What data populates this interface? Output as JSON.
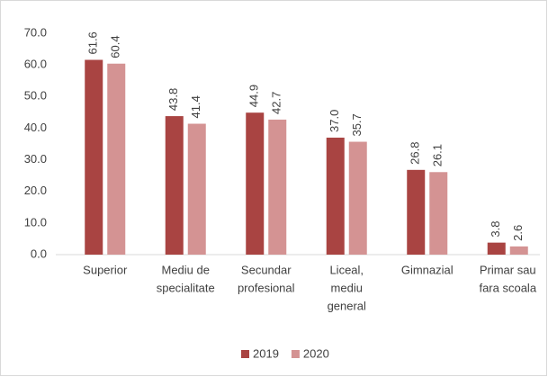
{
  "chart_data": {
    "type": "bar",
    "categories": [
      [
        "Superior"
      ],
      [
        "Mediu de",
        "specialitate"
      ],
      [
        "Secundar",
        "profesional"
      ],
      [
        "Liceal,",
        "mediu",
        "general"
      ],
      [
        "Gimnazial"
      ],
      [
        "Primar sau",
        "fara scoala"
      ]
    ],
    "series": [
      {
        "name": "2019",
        "color": "#a94442",
        "values": [
          61.6,
          43.8,
          44.9,
          37.0,
          26.8,
          3.8
        ],
        "value_labels": [
          "61.6",
          "43.8",
          "44.9",
          "37.0",
          "26.8",
          "3.8"
        ]
      },
      {
        "name": "2020",
        "color": "#d49393",
        "values": [
          60.4,
          41.4,
          42.7,
          35.7,
          26.1,
          2.6
        ],
        "value_labels": [
          "60.4",
          "41.4",
          "42.7",
          "35.7",
          "26.1",
          "2.6"
        ]
      }
    ],
    "ylim": [
      0,
      70
    ],
    "yticks": [
      {
        "value": 0,
        "label": "0.0"
      },
      {
        "value": 10,
        "label": "10.0"
      },
      {
        "value": 20,
        "label": "20.0"
      },
      {
        "value": 30,
        "label": "30.0"
      },
      {
        "value": 40,
        "label": "40.0"
      },
      {
        "value": 50,
        "label": "50.0"
      },
      {
        "value": 60,
        "label": "60.0"
      },
      {
        "value": 70,
        "label": "70.0"
      }
    ],
    "grid": false,
    "legend": "bottom"
  }
}
